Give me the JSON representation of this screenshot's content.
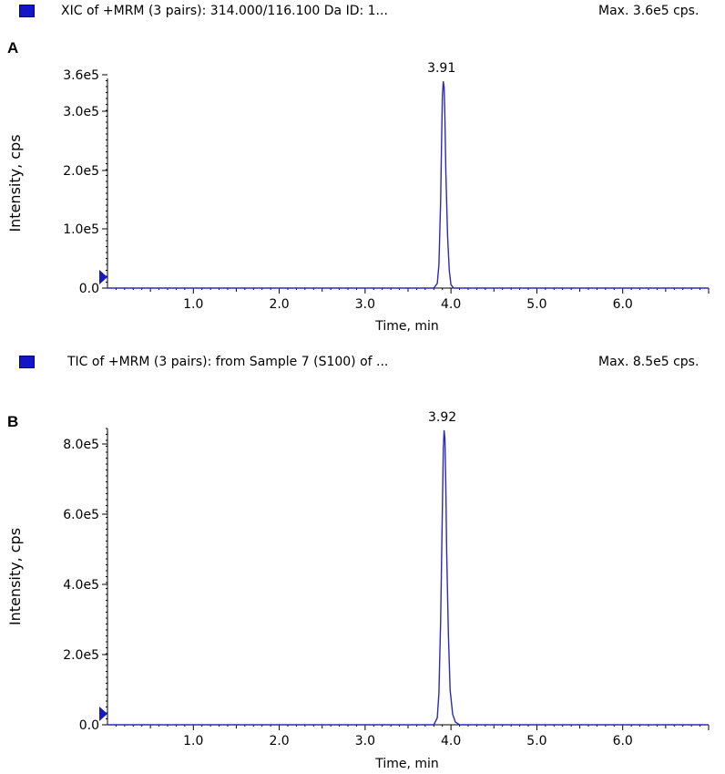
{
  "colors": {
    "trace": "#2b2bb5",
    "legend": "#1414c8",
    "axis": "#000000"
  },
  "panels": [
    {
      "letter": "A",
      "title": "XIC of +MRM (3 pairs): 314.000/116.100 Da ID: 1...",
      "max_label": "Max. 3.6e5 cps."
    },
    {
      "letter": "B",
      "title": "TIC of +MRM (3 pairs): from Sample 7 (S100) of ...",
      "max_label": "Max. 8.5e5 cps."
    }
  ],
  "chart_data": [
    {
      "type": "line",
      "title": "XIC of +MRM (3 pairs): 314.000/116.100 Da ID: 1...",
      "xlabel": "Time, min",
      "ylabel": "Intensity, cps",
      "xlim": [
        0.0,
        7.0
      ],
      "ylim": [
        0,
        360000
      ],
      "xticks": [
        "1.0",
        "2.0",
        "3.0",
        "4.0",
        "5.0",
        "6.0"
      ],
      "yticks": [
        "0.0",
        "1.0e5",
        "2.0e5",
        "3.0e5",
        "3.6e5"
      ],
      "peak_label": "3.91",
      "grid": false,
      "series": [
        {
          "x": [
            0.0,
            3.8,
            3.84,
            3.86,
            3.88,
            3.89,
            3.9,
            3.91,
            3.92,
            3.93,
            3.94,
            3.96,
            3.98,
            4.0,
            4.03,
            7.0
          ],
          "y": [
            0,
            0,
            8000,
            40000,
            150000,
            250000,
            330000,
            355000,
            345000,
            290000,
            200000,
            90000,
            30000,
            6000,
            0,
            0
          ]
        }
      ]
    },
    {
      "type": "line",
      "title": "TIC of +MRM (3 pairs): from Sample 7 (S100) of ...",
      "xlabel": "Time, min",
      "ylabel": "Intensity, cps",
      "xlim": [
        0.0,
        7.0
      ],
      "ylim": [
        0,
        850000
      ],
      "xticks": [
        "1.0",
        "2.0",
        "3.0",
        "4.0",
        "5.0",
        "6.0"
      ],
      "yticks": [
        "0.0",
        "2.0e5",
        "4.0e5",
        "6.0e5",
        "8.0e5"
      ],
      "peak_label": "3.92",
      "grid": false,
      "series": [
        {
          "x": [
            0.0,
            3.8,
            3.84,
            3.86,
            3.88,
            3.9,
            3.91,
            3.92,
            3.93,
            3.94,
            3.95,
            3.97,
            3.99,
            4.02,
            4.05,
            4.1,
            7.0
          ],
          "y": [
            0,
            0,
            20000,
            90000,
            300000,
            620000,
            790000,
            845000,
            820000,
            680000,
            500000,
            260000,
            100000,
            30000,
            8000,
            0,
            0
          ]
        }
      ]
    }
  ]
}
